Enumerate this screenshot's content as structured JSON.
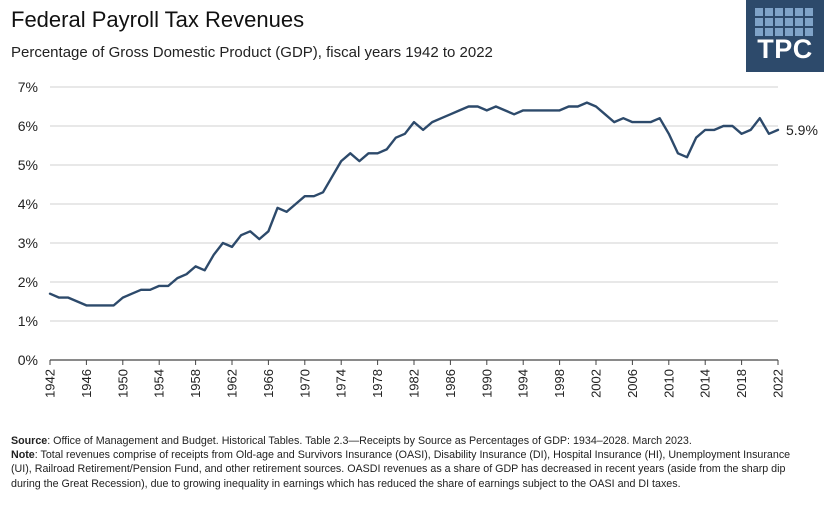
{
  "chart_data": {
    "type": "line",
    "title": "Federal Payroll Tax Revenues",
    "subtitle": "Percentage of Gross Domestic Product (GDP), fiscal years 1942 to 2022",
    "xlabel": "",
    "ylabel": "",
    "xlim": [
      1942,
      2022
    ],
    "ylim": [
      0,
      7
    ],
    "ytick_labels": [
      "0%",
      "1%",
      "2%",
      "3%",
      "4%",
      "5%",
      "6%",
      "7%"
    ],
    "xtick_labels": [
      "1942",
      "1946",
      "1950",
      "1954",
      "1958",
      "1962",
      "1966",
      "1970",
      "1974",
      "1978",
      "1982",
      "1986",
      "1990",
      "1994",
      "1998",
      "2002",
      "2006",
      "2010",
      "2014",
      "2018",
      "2022"
    ],
    "grid": "horizontal",
    "line_color": "#2d4a6b",
    "end_label": "5.9%",
    "series": [
      {
        "x": [
          1942,
          1943,
          1944,
          1945,
          1946,
          1947,
          1948,
          1949,
          1950,
          1951,
          1952,
          1953,
          1954,
          1955,
          1956,
          1957,
          1958,
          1959,
          1960,
          1961,
          1962,
          1963,
          1964,
          1965,
          1966,
          1967,
          1968,
          1969,
          1970,
          1971,
          1972,
          1973,
          1974,
          1975,
          1976,
          1977,
          1978,
          1979,
          1980,
          1981,
          1982,
          1983,
          1984,
          1985,
          1986,
          1987,
          1988,
          1989,
          1990,
          1991,
          1992,
          1993,
          1994,
          1995,
          1996,
          1997,
          1998,
          1999,
          2000,
          2001,
          2002,
          2003,
          2004,
          2005,
          2006,
          2007,
          2008,
          2009,
          2010,
          2011,
          2012,
          2013,
          2014,
          2015,
          2016,
          2017,
          2018,
          2019,
          2020,
          2021,
          2022
        ],
        "y": [
          1.7,
          1.6,
          1.6,
          1.5,
          1.4,
          1.4,
          1.4,
          1.4,
          1.6,
          1.7,
          1.8,
          1.8,
          1.9,
          1.9,
          2.1,
          2.2,
          2.4,
          2.3,
          2.7,
          3.0,
          2.9,
          3.2,
          3.3,
          3.1,
          3.3,
          3.9,
          3.8,
          4.0,
          4.2,
          4.2,
          4.3,
          4.7,
          5.1,
          5.3,
          5.1,
          5.3,
          5.3,
          5.4,
          5.7,
          5.8,
          6.1,
          5.9,
          6.1,
          6.2,
          6.3,
          6.4,
          6.5,
          6.5,
          6.4,
          6.5,
          6.4,
          6.3,
          6.4,
          6.4,
          6.4,
          6.4,
          6.4,
          6.5,
          6.5,
          6.6,
          6.5,
          6.3,
          6.1,
          6.2,
          6.1,
          6.1,
          6.1,
          6.2,
          5.8,
          5.3,
          5.2,
          5.7,
          5.9,
          5.9,
          6.0,
          6.0,
          5.8,
          5.9,
          6.2,
          5.8,
          5.9
        ]
      }
    ]
  },
  "logo": {
    "text": "TPC"
  },
  "notes": {
    "source_label": "Source",
    "source_text": ": Office of Management and Budget. Historical Tables. Table 2.3—Receipts by Source as Percentages of GDP: 1934–2028. March 2023.",
    "note_label": "Note",
    "note_text": ": Total revenues comprise of receipts from Old-age and Survivors Insurance (OASI), Disability Insurance (DI), Hospital Insurance (HI), Unemployment Insurance (UI), Railroad Retirement/Pension Fund, and other retirement sources. OASDI revenues as a share of GDP has decreased in recent years (aside from the sharp dip during the Great Recession), due to growing inequality in earnings which has reduced the share of earnings subject to the OASI and DI taxes."
  }
}
